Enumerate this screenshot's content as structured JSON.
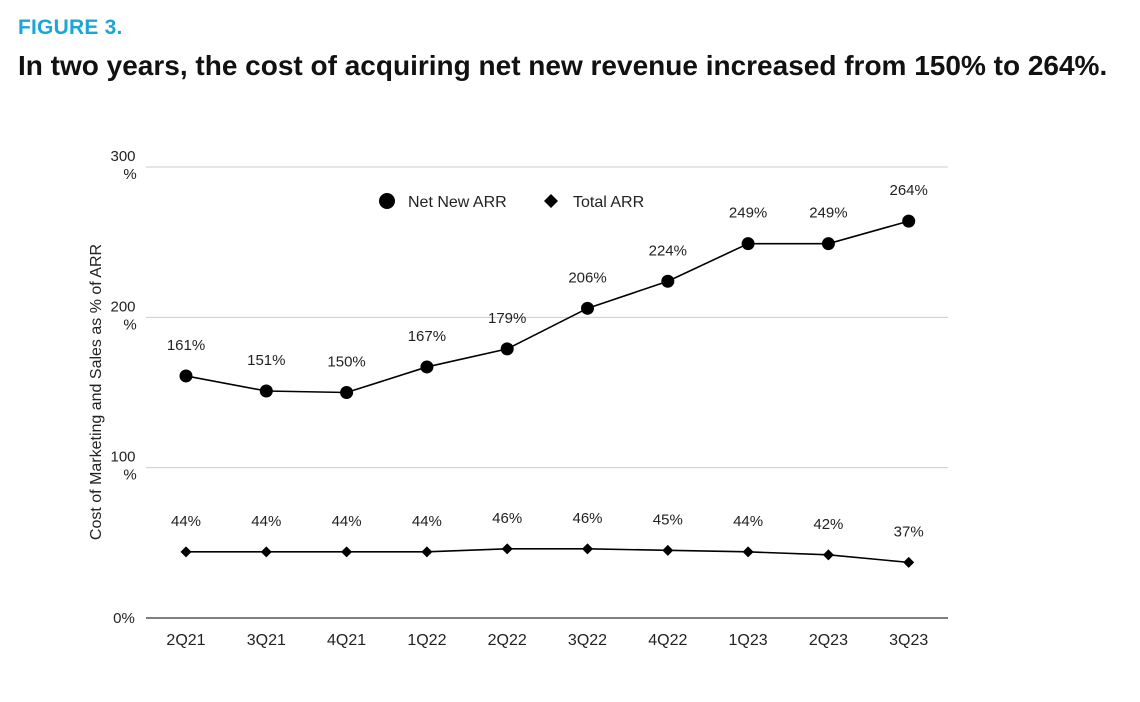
{
  "figure_label": "FIGURE 3.",
  "headline": "In two years, the cost of acquiring net new revenue increased from 150% to 264%.",
  "colors": {
    "figure_label": "#1aa7d6",
    "series": "#000000",
    "grid": "#cccccc"
  },
  "chart_data": {
    "type": "line",
    "title": "",
    "ylabel": "Cost of Marketing and Sales as % of ARR",
    "xlabel": "",
    "categories": [
      "2Q21",
      "3Q21",
      "4Q21",
      "1Q22",
      "2Q22",
      "3Q22",
      "4Q22",
      "1Q23",
      "2Q23",
      "3Q23"
    ],
    "ylim": [
      0,
      300
    ],
    "yticks": [
      {
        "value": 0,
        "label": "0%"
      },
      {
        "value": 100,
        "label": "100 %"
      },
      {
        "value": 200,
        "label": "200 %"
      },
      {
        "value": 300,
        "label": "300 %"
      }
    ],
    "grid": true,
    "legend_position": "top-center",
    "series": [
      {
        "name": "Net New ARR",
        "marker": "circle",
        "values": [
          161,
          151,
          150,
          167,
          179,
          206,
          224,
          249,
          249,
          264
        ],
        "labels": [
          "161%",
          "151%",
          "150%",
          "167%",
          "179%",
          "206%",
          "224%",
          "249%",
          "249%",
          "264%"
        ]
      },
      {
        "name": "Total ARR",
        "marker": "diamond",
        "values": [
          44,
          44,
          44,
          44,
          46,
          46,
          45,
          44,
          42,
          37
        ],
        "labels": [
          "44%",
          "44%",
          "44%",
          "44%",
          "46%",
          "46%",
          "45%",
          "44%",
          "42%",
          "37%"
        ]
      }
    ]
  }
}
